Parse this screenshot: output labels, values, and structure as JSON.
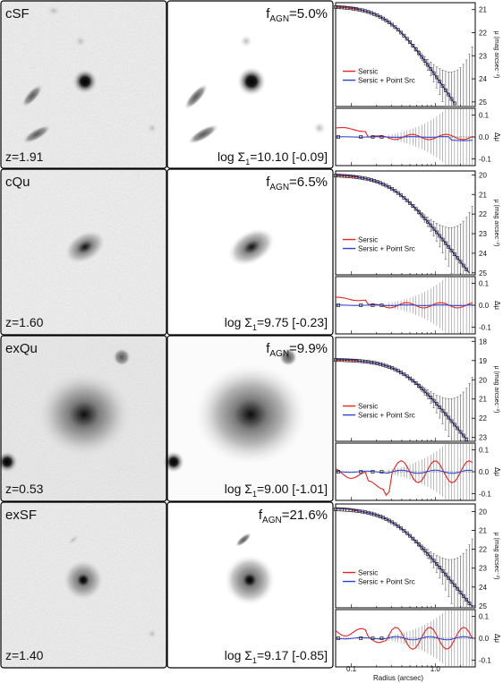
{
  "figure": {
    "rows": [
      {
        "label": "cSF",
        "redshift": "z=1.91",
        "fagn_prefix": "f",
        "fagn_sub": "AGN",
        "fagn_value": "=5.0%",
        "sigma_prefix": "log Σ",
        "sigma_sub": "1",
        "sigma_value": "=10.10 [-0.09]",
        "mu_ticks": [
          "21",
          "22",
          "23",
          "24",
          "25"
        ],
        "dmu_ticks": [
          "0.1",
          "0.0",
          "-0.1"
        ]
      },
      {
        "label": "cQu",
        "redshift": "z=1.60",
        "fagn_prefix": "f",
        "fagn_sub": "AGN",
        "fagn_value": "=6.5%",
        "sigma_prefix": "log Σ",
        "sigma_sub": "1",
        "sigma_value": "=9.75 [-0.23]",
        "mu_ticks": [
          "20",
          "21",
          "22",
          "23",
          "24",
          "25"
        ],
        "dmu_ticks": [
          "0.1",
          "0.0",
          "-0.1"
        ]
      },
      {
        "label": "exQu",
        "redshift": "z=0.53",
        "fagn_prefix": "f",
        "fagn_sub": "AGN",
        "fagn_value": "=9.9%",
        "sigma_prefix": "log Σ",
        "sigma_sub": "1",
        "sigma_value": "=9.00 [-1.01]",
        "mu_ticks": [
          "18",
          "19",
          "20",
          "21",
          "22",
          "23"
        ],
        "dmu_ticks": [
          "0.1",
          "0.0",
          "-0.1"
        ]
      },
      {
        "label": "exSF",
        "redshift": "z=1.40",
        "fagn_prefix": "f",
        "fagn_sub": "AGN",
        "fagn_value": "=21.6%",
        "sigma_prefix": "log Σ",
        "sigma_sub": "1",
        "sigma_value": "=9.17 [-0.85]",
        "mu_ticks": [
          "20",
          "21",
          "22",
          "23",
          "24",
          "25"
        ],
        "dmu_ticks": [
          "0.1",
          "0.0",
          "-0.1"
        ]
      }
    ],
    "legend": {
      "sersic": "Sersic",
      "sersic_ps": "Sersic + Point Src"
    },
    "ylabel_mu": "μ (mag arcsec⁻²)",
    "ylabel_dmu": "Δμ",
    "xlabel": "Radius (arcsec)",
    "x_ticks": [
      "0.1",
      "1.0"
    ],
    "colors": {
      "sersic": "#e8231c",
      "sersic_ps": "#2a3fd6",
      "data": "#222222",
      "frame": "#000000"
    }
  },
  "chart_data": {
    "type": "line",
    "xlabel": "Radius (arcsec)",
    "ylabel": "μ (mag arcsec⁻²)",
    "xscale": "log",
    "series": [
      {
        "name": "Sersic"
      },
      {
        "name": "Sersic + Point Src"
      }
    ]
  }
}
